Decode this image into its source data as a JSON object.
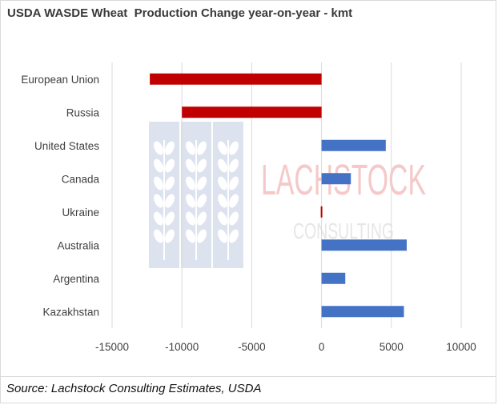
{
  "title": "USDA WASDE Wheat  Production Change year-on-year - kmt",
  "source": "Source: Lachstock Consulting Estimates, USDA",
  "watermark": {
    "line1": "LACHSTOCK",
    "line2": "CONSULTING",
    "logo": "wheat-ears-logo"
  },
  "colors": {
    "negative": "#c00000",
    "positive": "#4472c4",
    "grid": "#d9d9d9"
  },
  "chart_data": {
    "type": "bar",
    "orientation": "horizontal",
    "categories": [
      "European Union",
      "Russia",
      "United States",
      "Canada",
      "Ukraine",
      "Australia",
      "Argentina",
      "Kazakhstan"
    ],
    "values": [
      -12300,
      -10000,
      4600,
      2100,
      -100,
      6100,
      1700,
      5900
    ],
    "xlim": [
      -15000,
      10000
    ],
    "xticks": [
      -15000,
      -10000,
      -5000,
      0,
      5000,
      10000
    ],
    "grid": "vertical",
    "legend": "none"
  }
}
